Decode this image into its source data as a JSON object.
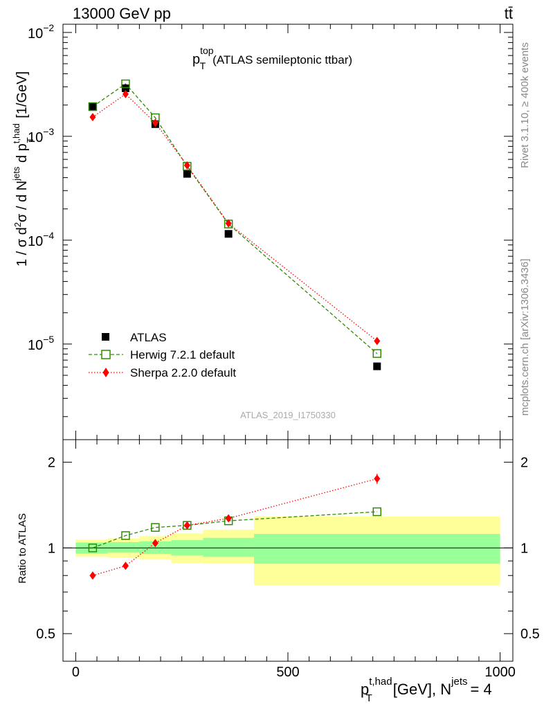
{
  "header": {
    "left": "13000 GeV pp",
    "right": "tt̄",
    "side_rivet": "Rivet 3.1.10, ≥ 400k events",
    "side_mcplots": "mcplots.cern.ch [arXiv:1306.3436]",
    "watermark": "ATLAS_2019_I1750330"
  },
  "chart_data": [
    {
      "type": "scatter",
      "title_main": "p",
      "title_sup": "top",
      "title_sub": "T",
      "title_rest": "(ATLAS semileptonic ttbar)",
      "ylabel": "1 / σ d²σ / d N^jets d p_T^t,had [1/GeV]",
      "yscale": "log",
      "ylim": [
        1.2e-06,
        0.012
      ],
      "xlim": [
        -30,
        1030
      ],
      "y_ticks": [
        {
          "value": 0.01,
          "base": "10",
          "exp": "−2"
        },
        {
          "value": 0.001,
          "base": "10",
          "exp": "−3"
        },
        {
          "value": 0.0001,
          "base": "10",
          "exp": "−4"
        },
        {
          "value": 1e-05,
          "base": "10",
          "exp": "−5"
        }
      ],
      "legend_position": "bottom-left",
      "series": [
        {
          "name": "ATLAS",
          "color": "#000000",
          "marker": "square-filled",
          "x": [
            40,
            117.5,
            187.5,
            262.5,
            360,
            710
          ],
          "y": [
            0.00193,
            0.0029,
            0.00131,
            0.000435,
            0.000115,
            6.1e-06
          ]
        },
        {
          "name": "Herwig 7.2.1 default",
          "color": "#2e8b00",
          "marker": "square-open",
          "line": "dashed",
          "x": [
            40,
            117.5,
            187.5,
            262.5,
            360,
            710
          ],
          "y": [
            0.00193,
            0.0032,
            0.00151,
            0.000515,
            0.000143,
            8.1e-06
          ]
        },
        {
          "name": "Sherpa 2.2.0 default",
          "color": "#ff0000",
          "marker": "diamond",
          "line": "dotted",
          "x": [
            40,
            117.5,
            187.5,
            262.5,
            360,
            710
          ],
          "y": [
            0.00153,
            0.00255,
            0.00135,
            0.000525,
            0.000145,
            1.07e-05
          ]
        }
      ]
    },
    {
      "type": "scatter",
      "ylabel": "Ratio to ATLAS",
      "xlabel_main": "p",
      "xlabel_sup": "t,had",
      "xlabel_sub": "T",
      "xlabel_rest": "[GeV], N",
      "xlabel_sup2": "jets",
      "xlabel_end": "= 4",
      "yscale": "log",
      "ylim": [
        0.4,
        2.4
      ],
      "xlim": [
        -30,
        1030
      ],
      "x_ticks": [
        {
          "value": 0,
          "label": "0"
        },
        {
          "value": 500,
          "label": "500"
        },
        {
          "value": 1000,
          "label": "1000"
        }
      ],
      "y_ticks": [
        {
          "value": 0.5,
          "label": "0.5"
        },
        {
          "value": 1,
          "label": "1"
        },
        {
          "value": 2,
          "label": "2"
        }
      ],
      "bands": [
        {
          "x": [
            0,
            75
          ],
          "inner": [
            0.955,
            1.045
          ],
          "outer": [
            0.93,
            1.07
          ]
        },
        {
          "x": [
            75,
            150
          ],
          "inner": [
            0.962,
            1.048
          ],
          "outer": [
            0.925,
            1.08
          ]
        },
        {
          "x": [
            150,
            225
          ],
          "inner": [
            0.952,
            1.055
          ],
          "outer": [
            0.91,
            1.1
          ]
        },
        {
          "x": [
            225,
            300
          ],
          "inner": [
            0.94,
            1.065
          ],
          "outer": [
            0.885,
            1.125
          ]
        },
        {
          "x": [
            300,
            420
          ],
          "inner": [
            0.93,
            1.085
          ],
          "outer": [
            0.88,
            1.16
          ]
        },
        {
          "x": [
            420,
            1000
          ],
          "inner": [
            0.88,
            1.12
          ],
          "outer": [
            0.74,
            1.29
          ]
        }
      ],
      "series": [
        {
          "name": "Herwig 7.2.1 default",
          "color": "#2e8b00",
          "x": [
            40,
            117.5,
            187.5,
            262.5,
            360,
            710
          ],
          "y": [
            1.0,
            1.105,
            1.18,
            1.2,
            1.245,
            1.34
          ]
        },
        {
          "name": "Sherpa 2.2.0 default",
          "color": "#ff0000",
          "x": [
            40,
            117.5,
            187.5,
            262.5,
            360,
            710
          ],
          "y": [
            0.8,
            0.865,
            1.04,
            1.2,
            1.27,
            1.75
          ],
          "yerr": [
            0,
            0,
            0,
            0.02,
            0.02,
            0.07
          ]
        }
      ]
    }
  ]
}
